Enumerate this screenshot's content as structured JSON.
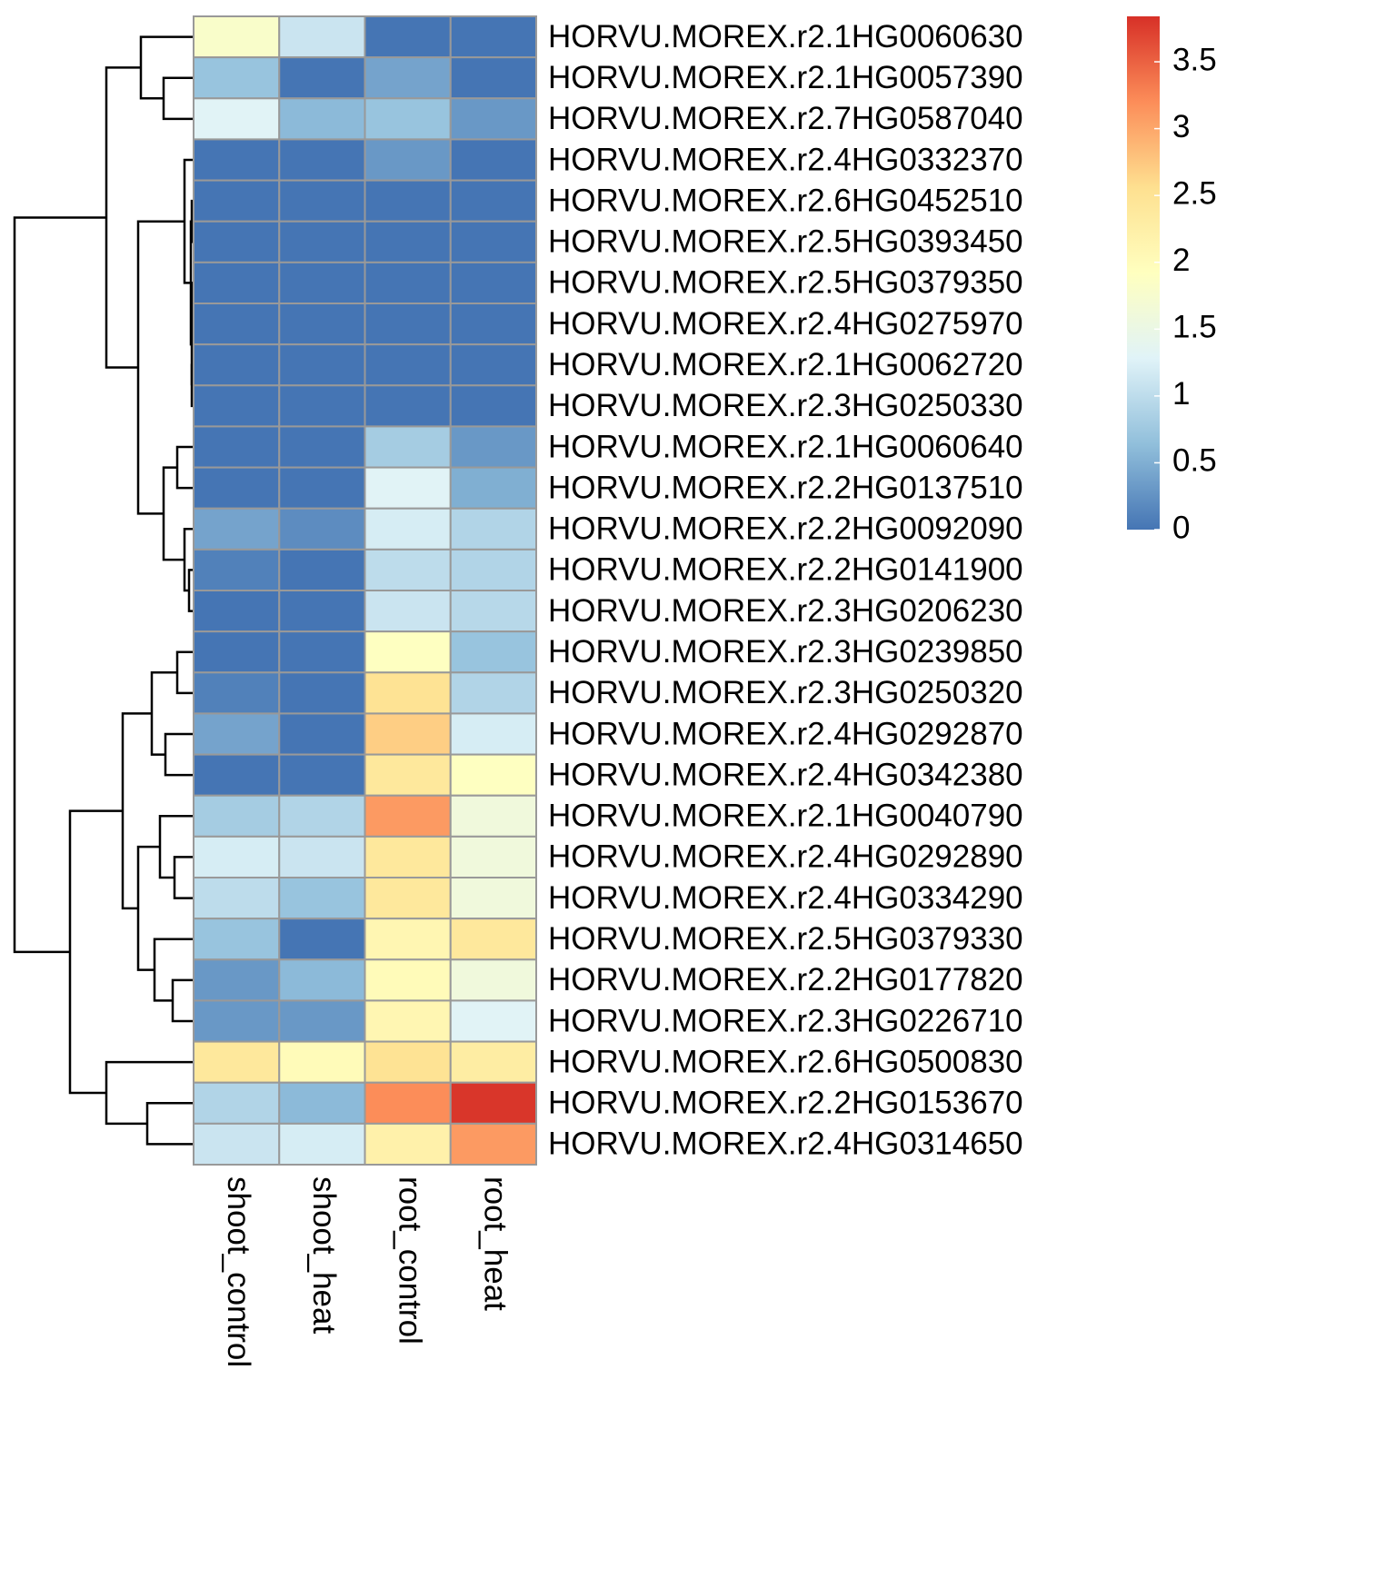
{
  "chart_data": {
    "type": "heatmap",
    "rows": [
      "HORVU.MOREX.r2.1HG0060630",
      "HORVU.MOREX.r2.1HG0057390",
      "HORVU.MOREX.r2.7HG0587040",
      "HORVU.MOREX.r2.4HG0332370",
      "HORVU.MOREX.r2.6HG0452510",
      "HORVU.MOREX.r2.5HG0393450",
      "HORVU.MOREX.r2.5HG0379350",
      "HORVU.MOREX.r2.4HG0275970",
      "HORVU.MOREX.r2.1HG0062720",
      "HORVU.MOREX.r2.3HG0250330",
      "HORVU.MOREX.r2.1HG0060640",
      "HORVU.MOREX.r2.2HG0137510",
      "HORVU.MOREX.r2.2HG0092090",
      "HORVU.MOREX.r2.2HG0141900",
      "HORVU.MOREX.r2.3HG0206230",
      "HORVU.MOREX.r2.3HG0239850",
      "HORVU.MOREX.r2.3HG0250320",
      "HORVU.MOREX.r2.4HG0292870",
      "HORVU.MOREX.r2.4HG0342380",
      "HORVU.MOREX.r2.1HG0040790",
      "HORVU.MOREX.r2.4HG0292890",
      "HORVU.MOREX.r2.4HG0334290",
      "HORVU.MOREX.r2.5HG0379330",
      "HORVU.MOREX.r2.2HG0177820",
      "HORVU.MOREX.r2.3HG0226710",
      "HORVU.MOREX.r2.6HG0500830",
      "HORVU.MOREX.r2.2HG0153670",
      "HORVU.MOREX.r2.4HG0314650"
    ],
    "columns": [
      "shoot_control",
      "shoot_heat",
      "root_control",
      "root_heat"
    ],
    "values": [
      [
        1.8,
        1.1,
        0,
        0
      ],
      [
        0.7,
        0,
        0.4,
        0
      ],
      [
        1.3,
        0.6,
        0.7,
        0.3
      ],
      [
        0,
        0,
        0.3,
        0
      ],
      [
        0,
        0,
        0,
        0
      ],
      [
        0,
        0,
        0,
        0
      ],
      [
        0,
        0,
        0,
        0
      ],
      [
        0,
        0,
        0,
        0
      ],
      [
        0,
        0,
        0,
        0
      ],
      [
        0,
        0,
        0,
        0
      ],
      [
        0,
        0,
        0.8,
        0.3
      ],
      [
        0,
        0,
        1.3,
        0.5
      ],
      [
        0.4,
        0.2,
        1.2,
        0.9
      ],
      [
        0.1,
        0,
        1.0,
        0.9
      ],
      [
        0,
        0,
        1.1,
        0.95
      ],
      [
        0,
        0,
        1.9,
        0.7
      ],
      [
        0.1,
        0,
        2.5,
        0.9
      ],
      [
        0.4,
        0,
        2.7,
        1.2
      ],
      [
        0,
        0,
        2.4,
        1.9
      ],
      [
        0.8,
        0.9,
        3.1,
        1.6
      ],
      [
        1.2,
        1.1,
        2.4,
        1.6
      ],
      [
        1.0,
        0.7,
        2.4,
        1.6
      ],
      [
        0.7,
        0,
        2.1,
        2.4
      ],
      [
        0.3,
        0.6,
        2.0,
        1.6
      ],
      [
        0.3,
        0.3,
        2.1,
        1.3
      ],
      [
        2.4,
        2.0,
        2.5,
        2.3
      ],
      [
        0.9,
        0.6,
        3.2,
        3.8
      ],
      [
        1.1,
        1.2,
        2.2,
        3.1
      ]
    ],
    "colors": [
      "#4575B4",
      "#91BFDB",
      "#E0F3F8",
      "#FFFFBF",
      "#FEE090",
      "#FC8D59",
      "#D73027"
    ],
    "clim": [
      0,
      3.84
    ],
    "cticks": [
      0,
      0.5,
      1,
      1.5,
      2,
      2.5,
      3,
      3.5
    ]
  }
}
